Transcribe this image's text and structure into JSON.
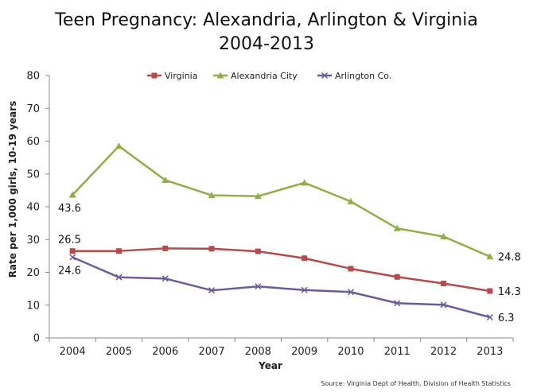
{
  "chart_data": {
    "type": "line",
    "title_line1": "Teen Pregnancy: Alexandria, Arlington & Virginia",
    "title_line2": "2004-2013",
    "xlabel": "Year",
    "ylabel": "Rate per 1,000 girls, 10-19 years",
    "categories": [
      "2004",
      "2005",
      "2006",
      "2007",
      "2008",
      "2009",
      "2010",
      "2011",
      "2012",
      "2013"
    ],
    "ylim": [
      0,
      80
    ],
    "yticks": [
      0,
      10,
      20,
      30,
      40,
      50,
      60,
      70,
      80
    ],
    "grid": false,
    "legend_placement": "top-center",
    "series": [
      {
        "name": "Virginia",
        "color": "#b94a48",
        "marker": "square",
        "values": [
          26.5,
          26.5,
          27.3,
          27.2,
          26.4,
          24.3,
          21.1,
          18.6,
          16.6,
          14.3
        ]
      },
      {
        "name": "Alexandria City",
        "color": "#8fb040",
        "marker": "triangle",
        "values": [
          43.6,
          58.5,
          48.1,
          43.5,
          43.2,
          47.3,
          41.6,
          33.4,
          30.9,
          24.8
        ]
      },
      {
        "name": "Arlington Co.",
        "color": "#6c5a9e",
        "marker": "x",
        "values": [
          24.6,
          18.5,
          18.1,
          14.5,
          15.7,
          14.6,
          14.0,
          10.6,
          10.1,
          6.3
        ]
      }
    ],
    "annotations": [
      {
        "text": "43.6",
        "series": "Alexandria City",
        "index": 0
      },
      {
        "text": "26.5",
        "series": "Virginia",
        "index": 0
      },
      {
        "text": "24.6",
        "series": "Arlington Co.",
        "index": 0
      },
      {
        "text": "24.8",
        "series": "Alexandria City",
        "index": 9
      },
      {
        "text": "14.3",
        "series": "Virginia",
        "index": 9
      },
      {
        "text": "6.3",
        "series": "Arlington Co.",
        "index": 9
      }
    ],
    "source": "Source: Virginia Dept of Health, Division of Health Statistics"
  }
}
